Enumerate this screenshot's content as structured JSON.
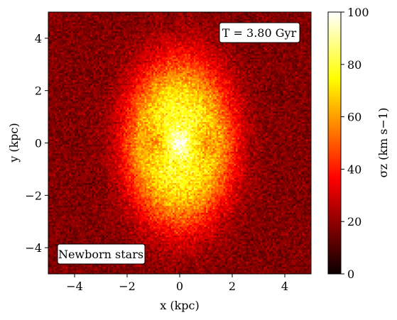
{
  "chart_data": {
    "type": "heatmap",
    "quantity": "vertical velocity dispersion map",
    "xlabel": "x (kpc)",
    "ylabel": "y (kpc)",
    "xlim": [
      -5,
      5
    ],
    "ylim": [
      -5,
      5
    ],
    "x_ticks": [
      -4,
      -2,
      0,
      2,
      4
    ],
    "y_ticks": [
      -4,
      -2,
      0,
      2,
      4
    ],
    "x_tick_labels": [
      "−4",
      "−2",
      "0",
      "2",
      "4"
    ],
    "y_tick_labels": [
      "−4",
      "−2",
      "0",
      "2",
      "4"
    ],
    "colormap": "hot",
    "colorbar": {
      "label": "σz (km s−1)",
      "range": [
        0,
        100
      ],
      "ticks": [
        0,
        20,
        40,
        60,
        80,
        100
      ],
      "tick_labels": [
        "0",
        "20",
        "40",
        "60",
        "80",
        "100"
      ]
    },
    "field_model": {
      "background_sigma": 18,
      "bar_peak_sigma": 80,
      "bar_semi_axis_x_kpc": 2.1,
      "bar_semi_axis_y_kpc": 3.3,
      "center_peak_sigma": 100,
      "center_radius_kpc": 0.45,
      "side_lobe_x_kpc": 1.05,
      "side_lobe_sigma": 58,
      "noise_sigma": 7
    },
    "annotations": {
      "time": "T = 3.80 Gyr",
      "population": "Newborn stars"
    },
    "grid": false
  },
  "colors": {
    "map_background": "#1a0000",
    "annotation_box": "#ffffff",
    "annotation_border": "#000000"
  }
}
